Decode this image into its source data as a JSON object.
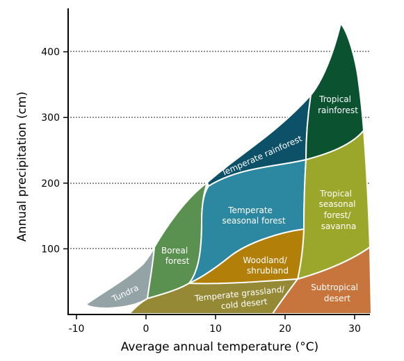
{
  "chart_data": {
    "type": "area",
    "title": "",
    "xlabel": "Average annual temperature (°C)",
    "ylabel": "Annual precipitation (cm)",
    "xlim": [
      -11,
      32
    ],
    "ylim": [
      0,
      460
    ],
    "x_ticks": [
      {
        "value": -10,
        "label": "-10"
      },
      {
        "value": 0,
        "label": "0"
      },
      {
        "value": 10,
        "label": "10"
      },
      {
        "value": 20,
        "label": "20"
      },
      {
        "value": 30,
        "label": "30"
      }
    ],
    "y_ticks": [
      {
        "value": 100,
        "label": "100"
      },
      {
        "value": 200,
        "label": "200"
      },
      {
        "value": 300,
        "label": "300"
      },
      {
        "value": 400,
        "label": "400"
      }
    ],
    "grid": "dotted horizontal at y ticks",
    "regions": [
      {
        "name": "Tundra",
        "label_lines": [
          "Tundra"
        ],
        "color": "#94a3a6"
      },
      {
        "name": "Boreal forest",
        "label_lines": [
          "Boreal",
          "forest"
        ],
        "color": "#5b9150"
      },
      {
        "name": "Temperate rainforest",
        "label_lines": [
          "Temperate rainforest"
        ],
        "color": "#0c5168"
      },
      {
        "name": "Temperate seasonal forest",
        "label_lines": [
          "Temperate",
          "seasonal forest"
        ],
        "color": "#2b88a0"
      },
      {
        "name": "Tropical rainforest",
        "label_lines": [
          "Tropical",
          "rainforest"
        ],
        "color": "#0b5230"
      },
      {
        "name": "Tropical seasonal forest/savanna",
        "label_lines": [
          "Tropical",
          "seasonal",
          "forest/",
          "savanna"
        ],
        "color": "#9ba72a"
      },
      {
        "name": "Woodland/shrubland",
        "label_lines": [
          "Woodland/",
          "shrubland"
        ],
        "color": "#b27f09"
      },
      {
        "name": "Temperate grassland/cold desert",
        "label_lines": [
          "Temperate grassland/",
          "cold desert"
        ],
        "color": "#958936"
      },
      {
        "name": "Subtropical desert",
        "label_lines": [
          "Subtropical",
          "desert"
        ],
        "color": "#c7743d"
      }
    ]
  }
}
